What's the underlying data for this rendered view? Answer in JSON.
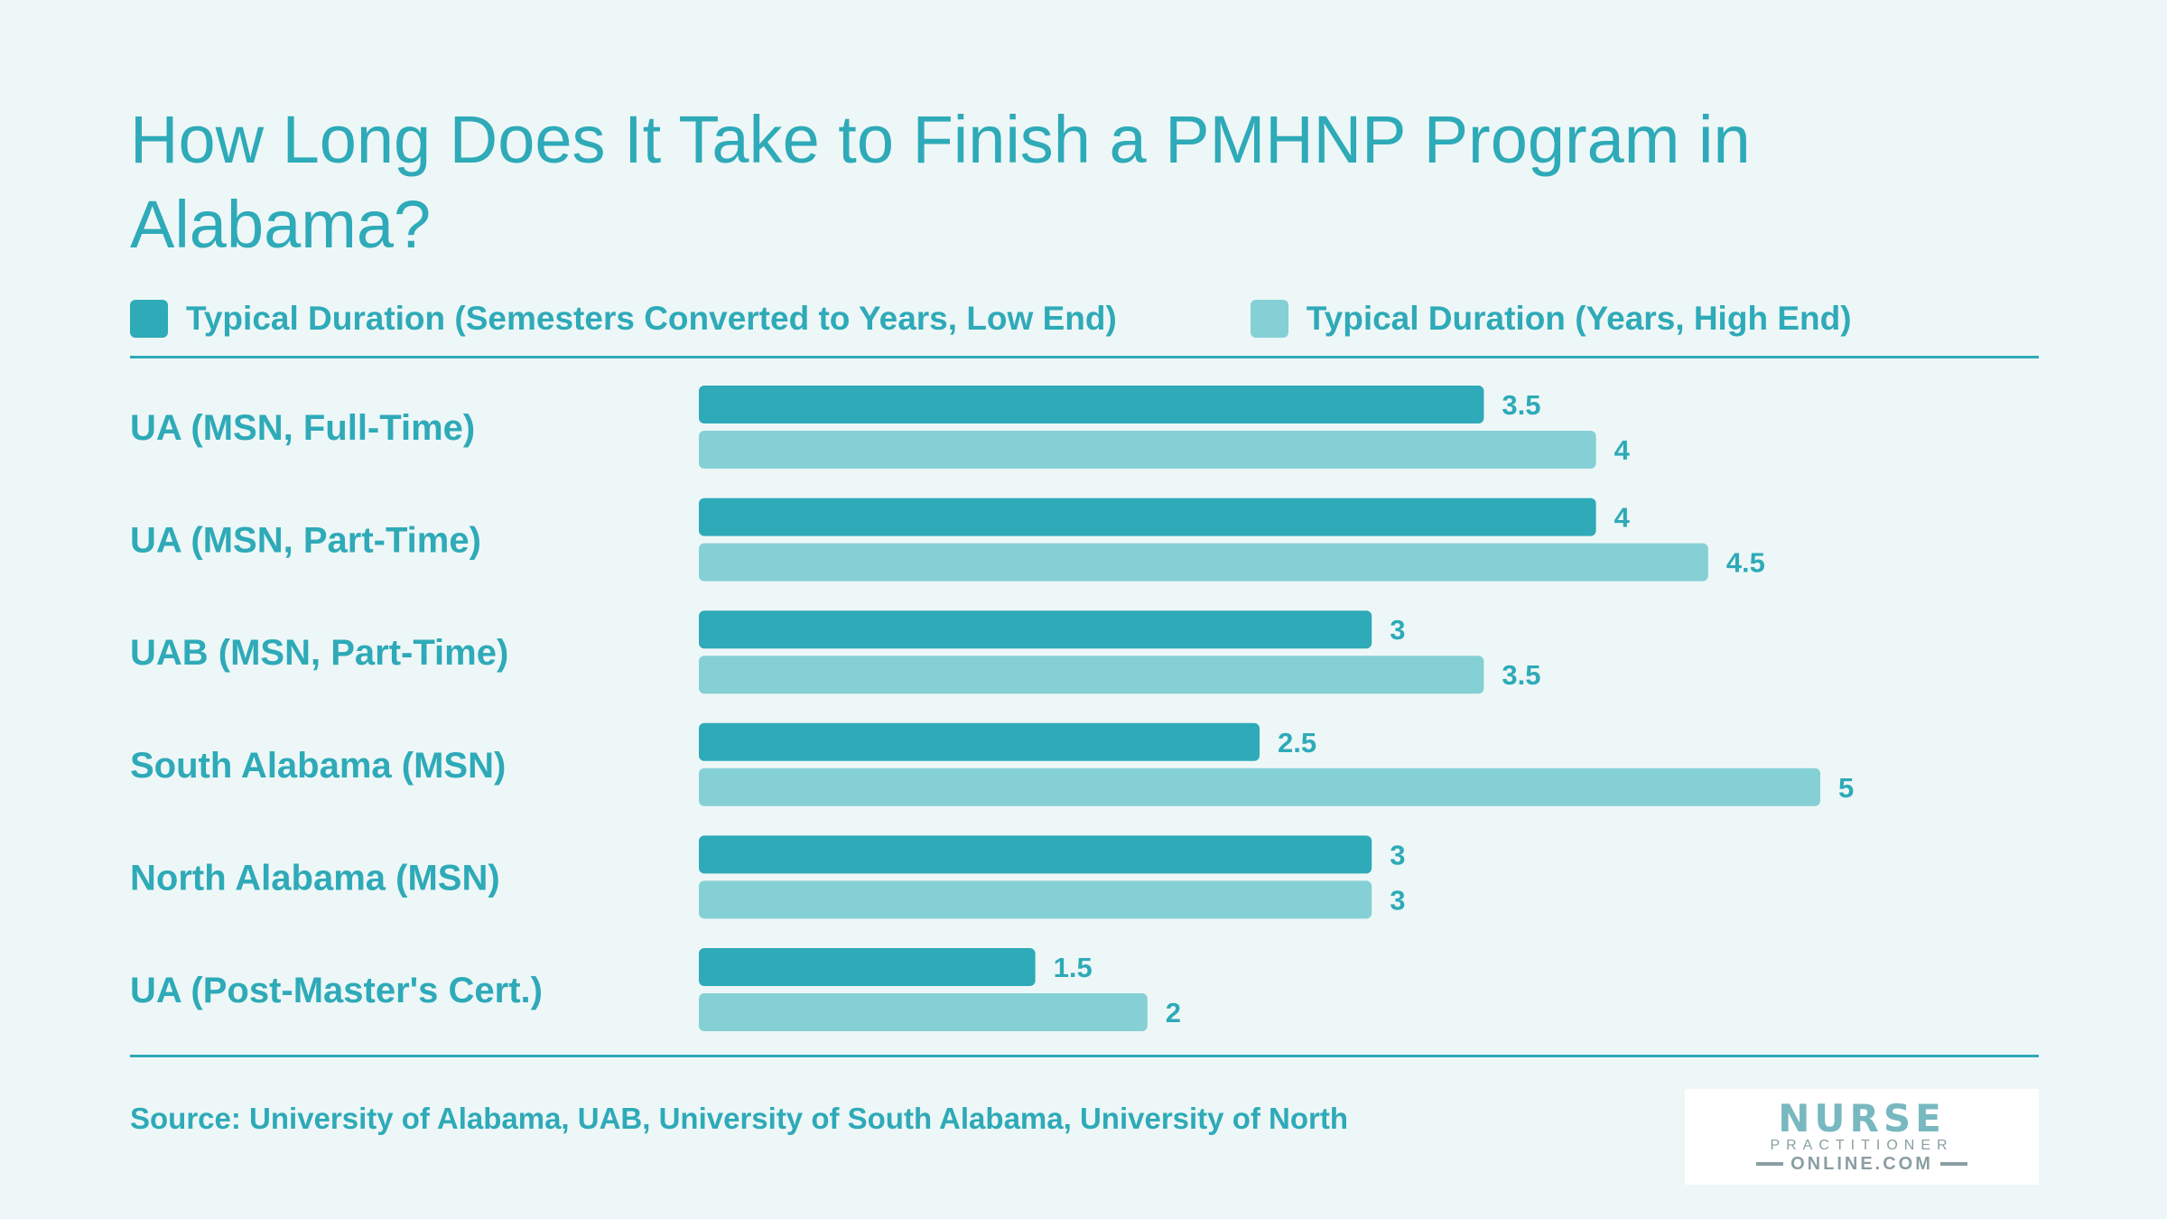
{
  "chart_data": {
    "type": "bar",
    "orientation": "horizontal",
    "title": "How Long Does It Take to Finish a PMHNP Program in Alabama?",
    "categories": [
      "UA (MSN, Full-Time)",
      "UA (MSN, Part-Time)",
      "UAB (MSN, Part-Time)",
      "South Alabama (MSN)",
      "North Alabama (MSN)",
      "UA (Post-Master's Cert.)"
    ],
    "series": [
      {
        "name": "Typical Duration (Semesters Converted to Years, Low End)",
        "color": "#2eaab8",
        "values": [
          3.5,
          4,
          3,
          2.5,
          3,
          1.5
        ]
      },
      {
        "name": "Typical Duration (Years, High End)",
        "color": "#85d0d5",
        "values": [
          4,
          4.5,
          3.5,
          5,
          3,
          2
        ]
      }
    ],
    "xlim": [
      0,
      5
    ],
    "value_labels": [
      [
        "3.5",
        "4",
        "3",
        "2.5",
        "3",
        "1.5"
      ],
      [
        "4",
        "4.5",
        "3.5",
        "5",
        "3",
        "2"
      ]
    ],
    "legend_position": "top",
    "grid": false
  },
  "source": "Source: University of Alabama, UAB, University of South Alabama, University of North",
  "logo": {
    "main": "NURSE",
    "sub": "PRACTITIONER",
    "bottom": "ONLINE.COM"
  },
  "colors": {
    "background": "#eef7f7",
    "text": "#2eaab8",
    "low": "#2eaab8",
    "high": "#85d0d5"
  }
}
